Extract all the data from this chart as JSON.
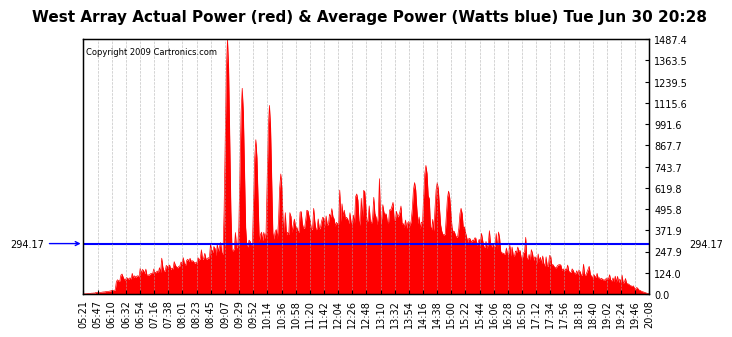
{
  "title": "West Array Actual Power (red) & Average Power (Watts blue) Tue Jun 30 20:28",
  "copyright": "Copyright 2009 Cartronics.com",
  "average_power": 294.17,
  "ymax": 1487.4,
  "ymin": 0.0,
  "yticks_right": [
    0.0,
    124.0,
    247.9,
    371.9,
    495.8,
    619.8,
    743.7,
    867.7,
    991.6,
    1115.6,
    1239.5,
    1363.5,
    1487.4
  ],
  "ytick_labels_right": [
    "0.0",
    "124.0",
    "247.9",
    "371.9",
    "495.8",
    "619.8",
    "743.7",
    "867.7",
    "991.6",
    "1115.6",
    "1239.5",
    "1363.5",
    "1487.4"
  ],
  "xtick_labels": [
    "05:21",
    "05:47",
    "06:10",
    "06:32",
    "06:54",
    "07:16",
    "07:38",
    "08:01",
    "08:23",
    "08:45",
    "09:07",
    "09:29",
    "09:52",
    "10:14",
    "10:36",
    "10:58",
    "11:20",
    "11:42",
    "12:04",
    "12:26",
    "12:48",
    "13:10",
    "13:32",
    "13:54",
    "14:16",
    "14:38",
    "15:00",
    "15:22",
    "15:44",
    "16:06",
    "16:28",
    "16:50",
    "17:12",
    "17:34",
    "17:56",
    "18:18",
    "18:40",
    "19:02",
    "19:24",
    "19:46",
    "20:08"
  ],
  "background_color": "#ffffff",
  "plot_bg_color": "#ffffff",
  "grid_color": "#aaaaaa",
  "red_color": "#ff0000",
  "blue_color": "#0000ff",
  "title_fontsize": 11,
  "tick_fontsize": 7
}
